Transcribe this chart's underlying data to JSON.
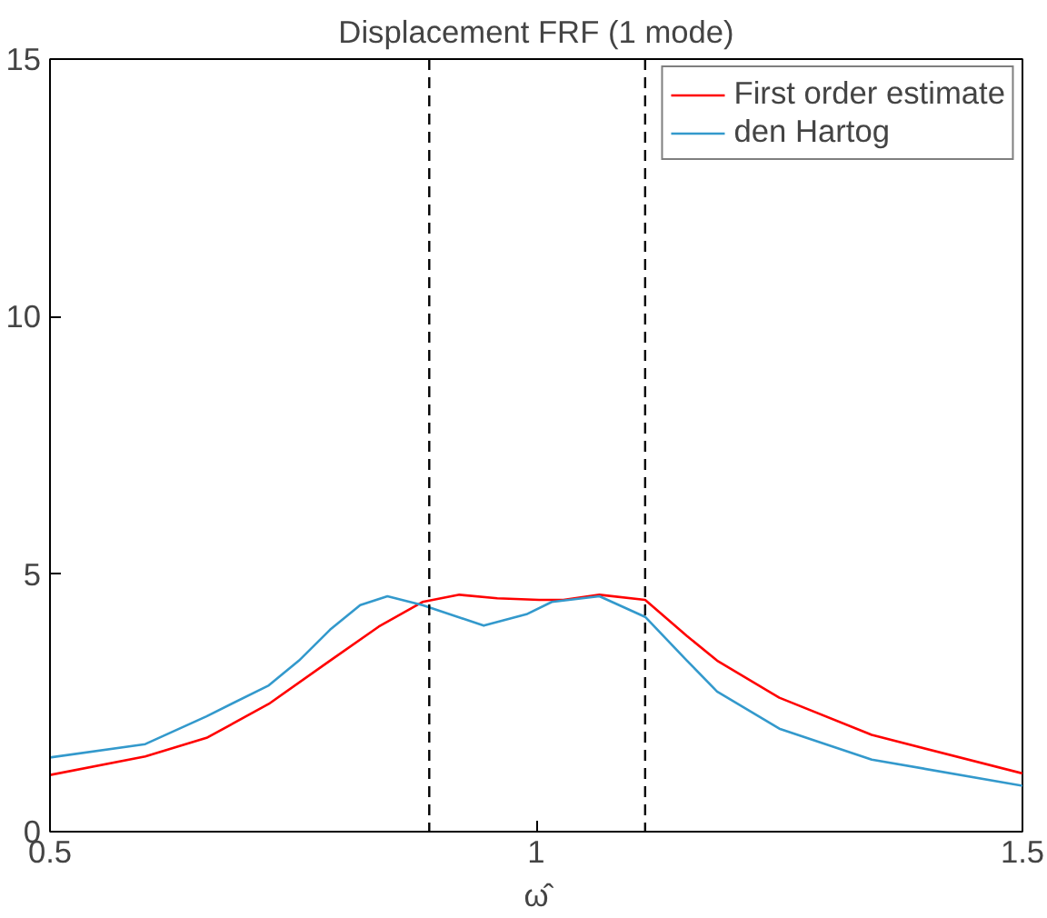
{
  "chart_data": {
    "type": "line",
    "title": "Displacement FRF (1 mode)",
    "xlabel": "ω̂",
    "xlim": [
      0.5,
      1.5
    ],
    "ylim": [
      0,
      15
    ],
    "xticks": [
      0.5,
      1,
      1.5
    ],
    "yticks": [
      0,
      5,
      10,
      15
    ],
    "grid": false,
    "legend": "top right",
    "series": [
      {
        "name": "First order estimate",
        "color": "#ff0000",
        "x": [
          0.5,
          0.598,
          0.661,
          0.725,
          0.788,
          0.838,
          0.883,
          0.921,
          0.96,
          1.003,
          1.028,
          1.065,
          1.112,
          1.155,
          1.186,
          1.25,
          1.345,
          1.5
        ],
        "values": [
          1.1,
          1.46,
          1.82,
          2.48,
          3.32,
          3.98,
          4.46,
          4.6,
          4.53,
          4.5,
          4.5,
          4.6,
          4.5,
          3.8,
          3.32,
          2.6,
          1.88,
          1.13
        ]
      },
      {
        "name": "den Hartog",
        "color": "#3399cc",
        "x": [
          0.5,
          0.598,
          0.661,
          0.725,
          0.756,
          0.788,
          0.819,
          0.847,
          0.883,
          0.946,
          0.99,
          1.016,
          1.065,
          1.112,
          1.155,
          1.186,
          1.25,
          1.345,
          1.5
        ],
        "values": [
          1.44,
          1.7,
          2.24,
          2.84,
          3.32,
          3.92,
          4.4,
          4.57,
          4.4,
          4.0,
          4.22,
          4.46,
          4.57,
          4.17,
          3.32,
          2.72,
          2.0,
          1.4,
          0.89
        ]
      }
    ],
    "ref_lines": [
      {
        "axis": "x",
        "value": 0.89,
        "color": "#000000",
        "line_style": "dashed"
      },
      {
        "axis": "x",
        "value": 1.112,
        "color": "#000000",
        "line_style": "dashed"
      }
    ]
  }
}
